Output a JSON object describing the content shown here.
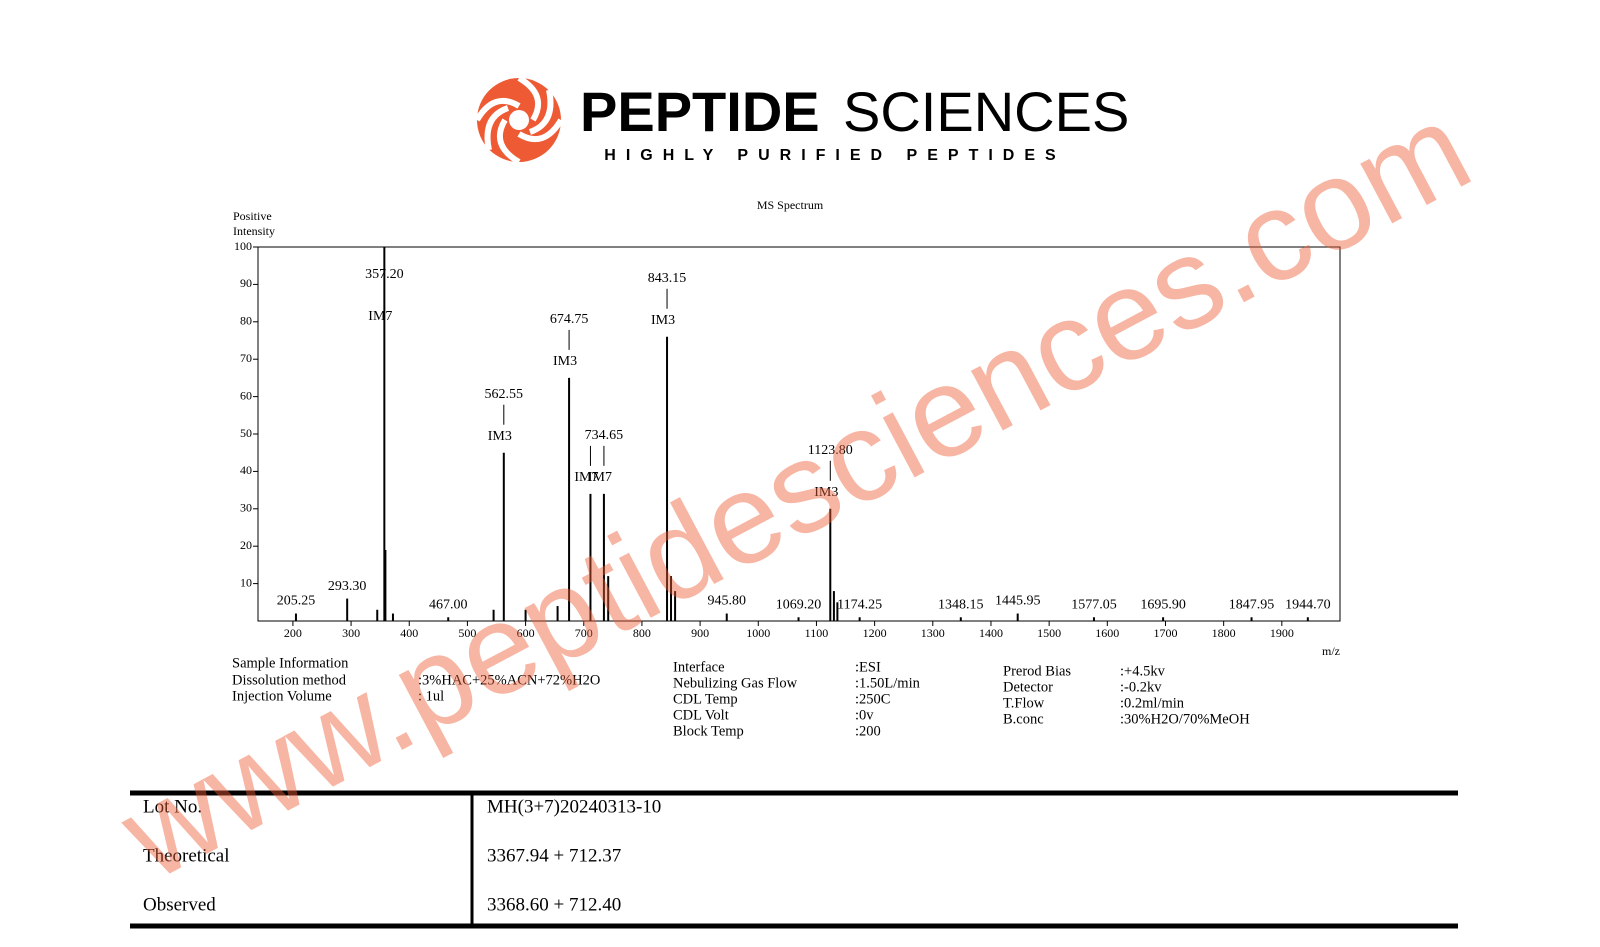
{
  "header": {
    "brand_bold": "PEPTIDE",
    "brand_light": "SCIENCES",
    "tagline": "HIGHLY PURIFIED PEPTIDES"
  },
  "chart_data": {
    "type": "stem",
    "title": "MS Spectrum",
    "y_label": [
      "Positive",
      "Intensity"
    ],
    "x_label": "m/z",
    "color": "#000000",
    "x": [
      205.25,
      293.3,
      345,
      357.2,
      359,
      372,
      467.0,
      545,
      562.55,
      600,
      655,
      674.75,
      711.5,
      734.65,
      742,
      843.15,
      850,
      857,
      945.8,
      1069.2,
      1123.8,
      1130,
      1136,
      1174.25,
      1348.15,
      1445.95,
      1577.05,
      1695.9,
      1847.95,
      1944.7
    ],
    "values": [
      2,
      6,
      3,
      100,
      19,
      2,
      1,
      3,
      45,
      3,
      4,
      65,
      34,
      34,
      12,
      76,
      12,
      8,
      2,
      1,
      30,
      8,
      5,
      1,
      1,
      2,
      1,
      1,
      1,
      1
    ],
    "peak_labels": [
      "205.25",
      "293.30",
      null,
      "357.20",
      null,
      null,
      "467.00",
      null,
      "562.55",
      null,
      null,
      "674.75",
      null,
      "734.65",
      null,
      "843.15",
      null,
      null,
      "945.80",
      "1069.20",
      "1123.80",
      null,
      null,
      "1174.25",
      "1348.15",
      "1445.95",
      "1577.05",
      "1695.90",
      "1847.95",
      "1944.70"
    ],
    "annotations": [
      null,
      null,
      null,
      "IM7",
      null,
      null,
      null,
      null,
      "IM3",
      null,
      null,
      "IM3",
      "IM7",
      "IM7",
      null,
      "IM3",
      null,
      null,
      null,
      null,
      "IM3",
      null,
      null,
      null,
      null,
      null,
      null,
      null,
      null,
      null
    ],
    "xlim": [
      140,
      2000
    ],
    "ylim": [
      0,
      100
    ],
    "xticks": [
      200,
      300,
      400,
      500,
      600,
      700,
      800,
      900,
      1000,
      1100,
      1200,
      1300,
      1400,
      1500,
      1600,
      1700,
      1800,
      1900
    ],
    "yticks": [
      10,
      20,
      30,
      40,
      50,
      60,
      70,
      80,
      90,
      100
    ]
  },
  "info": {
    "sample": {
      "title": "Sample Information",
      "rows": [
        [
          "Dissolution method",
          ":3%HAC+25%ACN+72%H2O"
        ],
        [
          "Injection Volume",
          ": 1ul"
        ]
      ]
    },
    "source": {
      "rows": [
        [
          "Interface",
          ":ESI"
        ],
        [
          "Nebulizing Gas Flow",
          ":1.50L/min"
        ],
        [
          "CDL Temp",
          ":250C"
        ],
        [
          "CDL Volt",
          ":0v"
        ],
        [
          "Block Temp",
          ":200"
        ]
      ]
    },
    "detector": {
      "rows": [
        [
          "Prerod Bias",
          ":+4.5kv"
        ],
        [
          "Detector",
          ":-0.2kv"
        ],
        [
          "T.Flow",
          ":0.2ml/min"
        ],
        [
          "B.conc",
          ":30%H2O/70%MeOH"
        ]
      ]
    }
  },
  "table": {
    "rows": [
      [
        "Lot No.",
        "MH(3+7)20240313-10"
      ],
      [
        "Theoretical",
        "3367.94 + 712.37"
      ],
      [
        "Observed",
        "3368.60 + 712.40"
      ]
    ]
  },
  "watermark": "www.peptidesciences.com"
}
